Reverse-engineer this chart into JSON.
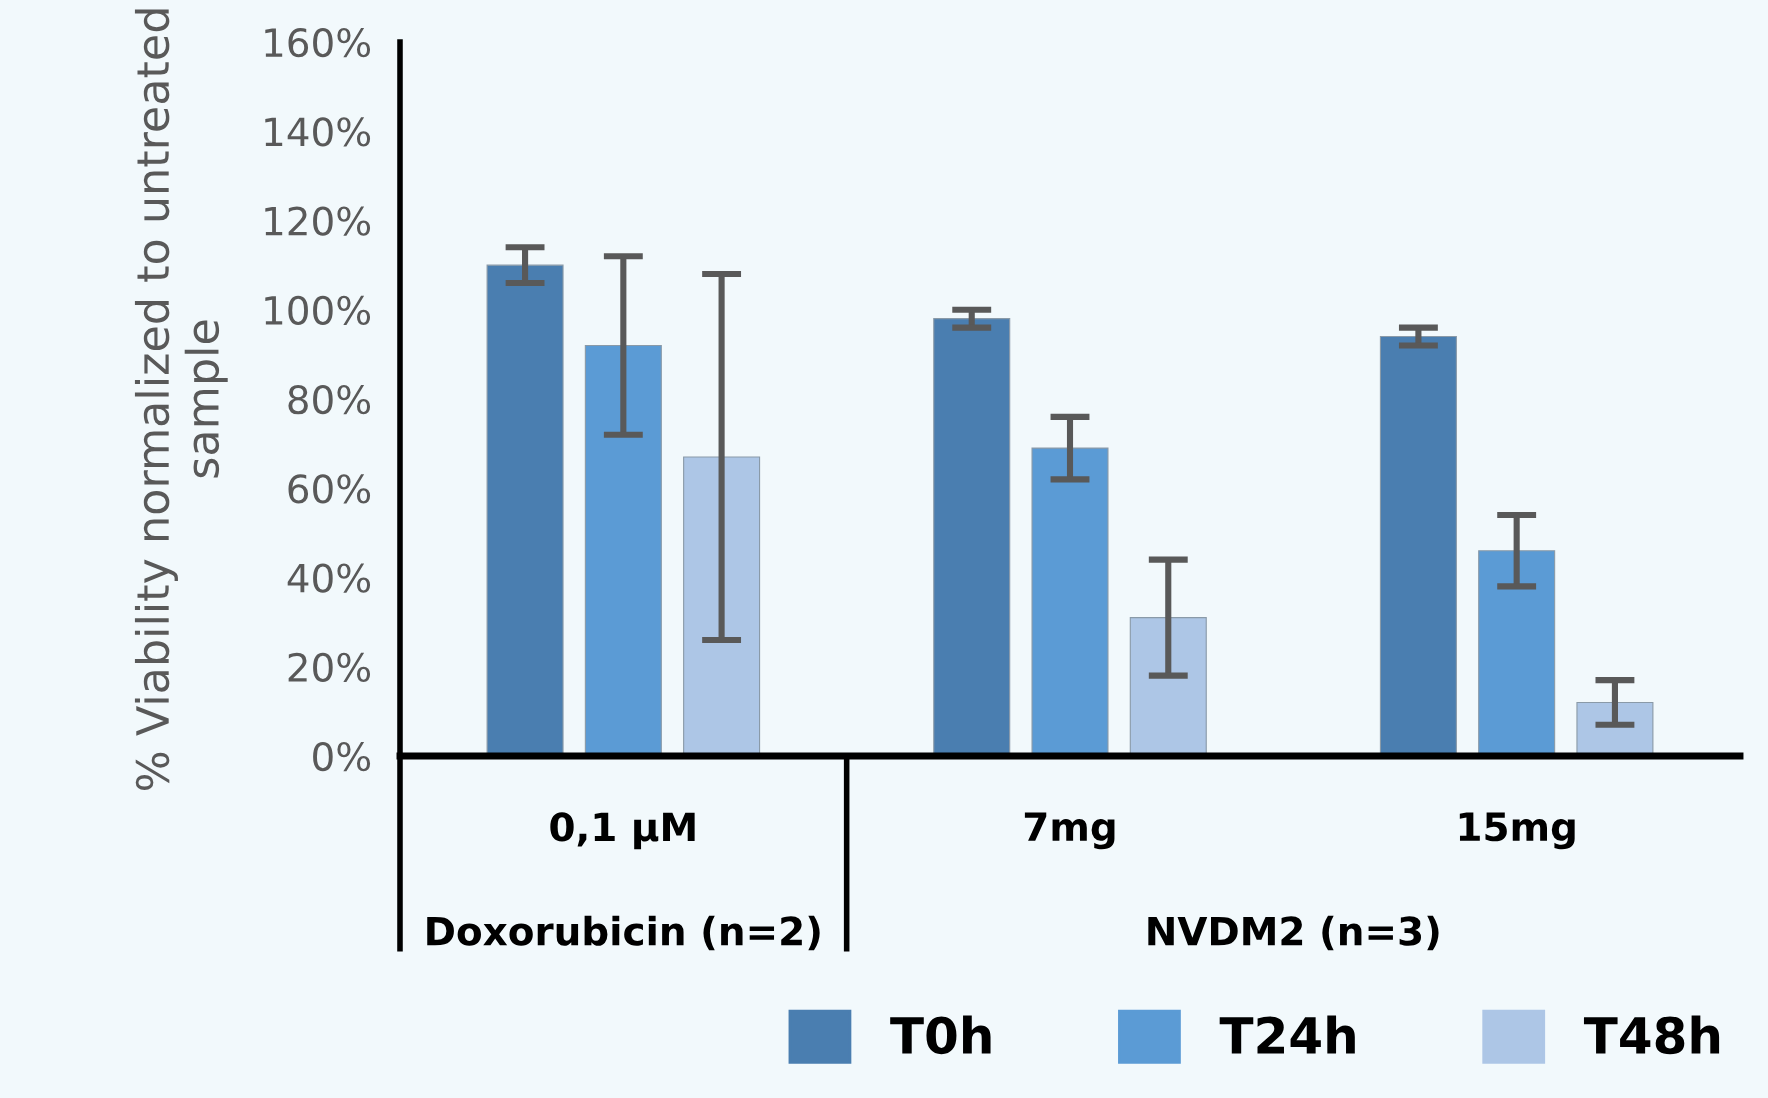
{
  "chart_data": {
    "type": "bar",
    "ylabel": "% Viability normalized to untreated sample",
    "categories": [
      "0,1 µM",
      "7mg",
      "15mg"
    ],
    "series": [
      {
        "name": "T0h",
        "color": "#4a7eb0",
        "values": [
          110,
          98,
          94
        ],
        "errors": [
          4,
          2,
          2
        ]
      },
      {
        "name": "T24h",
        "color": "#5b9bd5",
        "values": [
          92,
          69,
          46
        ],
        "errors": [
          20,
          7,
          8
        ]
      },
      {
        "name": "T48h",
        "color": "#adc6e6",
        "values": [
          67,
          31,
          12
        ],
        "errors": [
          41,
          13,
          5
        ]
      }
    ],
    "ylim": [
      0,
      160
    ],
    "yticks": [
      {
        "value": 0,
        "label": "0%"
      },
      {
        "value": 20,
        "label": "20%"
      },
      {
        "value": 40,
        "label": "40%"
      },
      {
        "value": 60,
        "label": "60%"
      },
      {
        "value": 80,
        "label": "80%"
      },
      {
        "value": 100,
        "label": "100%"
      },
      {
        "value": 120,
        "label": "120%"
      },
      {
        "value": 140,
        "label": "140%"
      },
      {
        "value": 160,
        "label": "160%"
      }
    ],
    "annotations": [
      "Doxorubicin (n=2)",
      "NVDM2 (n=3)"
    ],
    "grid": false,
    "legend": "bottom right"
  }
}
